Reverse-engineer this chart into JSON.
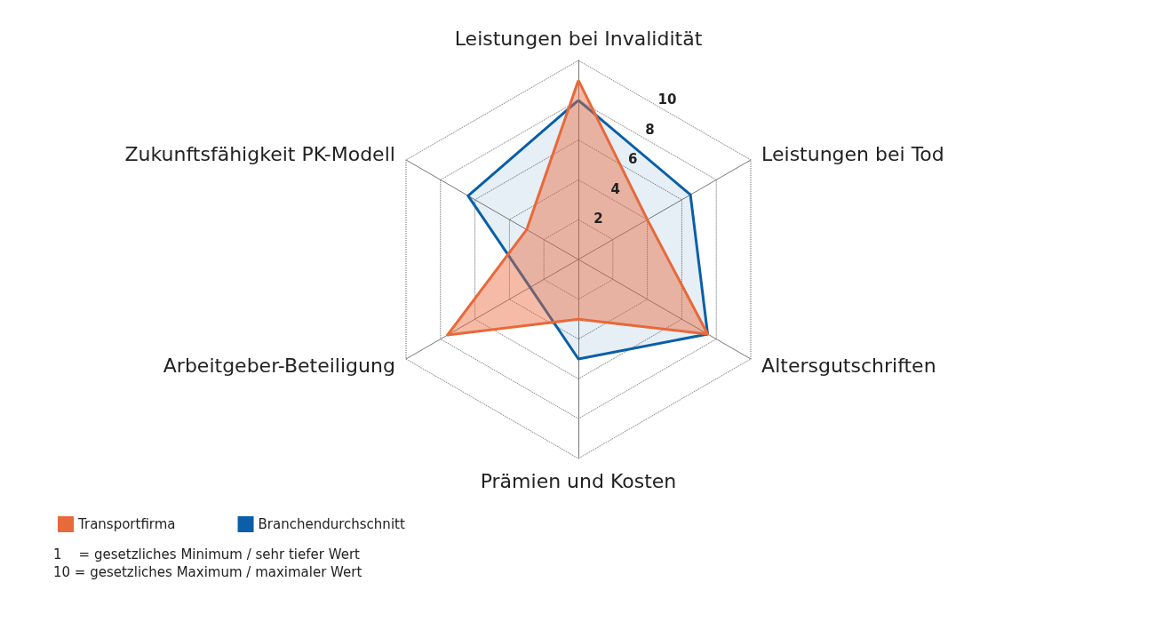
{
  "chart_data": {
    "type": "radar",
    "categories": [
      "Leistungen bei Invalidität",
      "Leistungen bei Tod",
      "Altersgutschriften",
      "Prämien und Kosten",
      "Arbeitgeber-Beteiligung",
      "Zukunftsfähigkeit PK-Modell"
    ],
    "series": [
      {
        "name": "Transportfirma",
        "color": "#e8693a",
        "values": [
          9,
          4,
          7.5,
          3,
          7.6,
          3
        ]
      },
      {
        "name": "Branchendurchschnitt",
        "color": "#0a5fa8",
        "values": [
          8,
          6.5,
          7.5,
          5,
          2.8,
          6.4
        ]
      }
    ],
    "ylim": [
      0,
      10
    ],
    "yticks": [
      2,
      4,
      6,
      8,
      10
    ],
    "legend": "bottom left",
    "marker": "none",
    "line_style": "solid",
    "annotations": [
      "1    = gesetzliches Minimum / sehr tiefer Wert",
      "10 = gesetzliches Maximum / maximaler Wert"
    ]
  }
}
